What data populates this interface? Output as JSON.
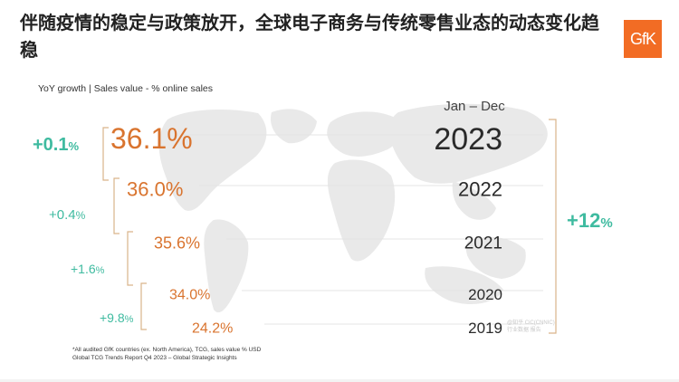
{
  "title": "伴随疫情的稳定与政策放开，全球电子商务与传统零售业态的动态变化趋稳",
  "logo_text": "GfK",
  "subtitle": "YoY growth  |  Sales value - % online sales",
  "period_label": "Jan – Dec",
  "footnote": {
    "line1": "*All audited GfK countries (ex. North America), TCG, sales value % USD",
    "line2": "Global TCG Trends Report Q4 2023 – Global Strategic Insights"
  },
  "watermark": {
    "line1": "@知乎 CiC(CNNIC)",
    "line2": "行业数据 报告"
  },
  "colors": {
    "orange": "#d9742f",
    "teal": "#3fbba0",
    "year": "#2a2a2a",
    "bracket": "#d9b48a",
    "map": "#e8e8e8"
  },
  "chart_data": {
    "type": "table",
    "title": "",
    "rows": [
      {
        "year": "2023",
        "online_share": "36.1%",
        "value": 36.1
      },
      {
        "year": "2022",
        "online_share": "36.0%",
        "value": 36.0
      },
      {
        "year": "2021",
        "online_share": "35.6%",
        "value": 35.6
      },
      {
        "year": "2020",
        "online_share": "34.0%",
        "value": 34.0
      },
      {
        "year": "2019",
        "online_share": "24.2%",
        "value": 24.2
      }
    ],
    "yoy_growth": [
      {
        "number": "+0.1",
        "unit": "%",
        "between": [
          "2022",
          "2023"
        ]
      },
      {
        "number": "+0.4",
        "unit": "%",
        "between": [
          "2021",
          "2022"
        ]
      },
      {
        "number": "+1.6",
        "unit": "%",
        "between": [
          "2020",
          "2021"
        ]
      },
      {
        "number": "+9.8",
        "unit": "%",
        "between": [
          "2019",
          "2020"
        ]
      }
    ],
    "total_growth": {
      "number": "+12",
      "unit": "%",
      "between": [
        "2019",
        "2023"
      ]
    }
  }
}
